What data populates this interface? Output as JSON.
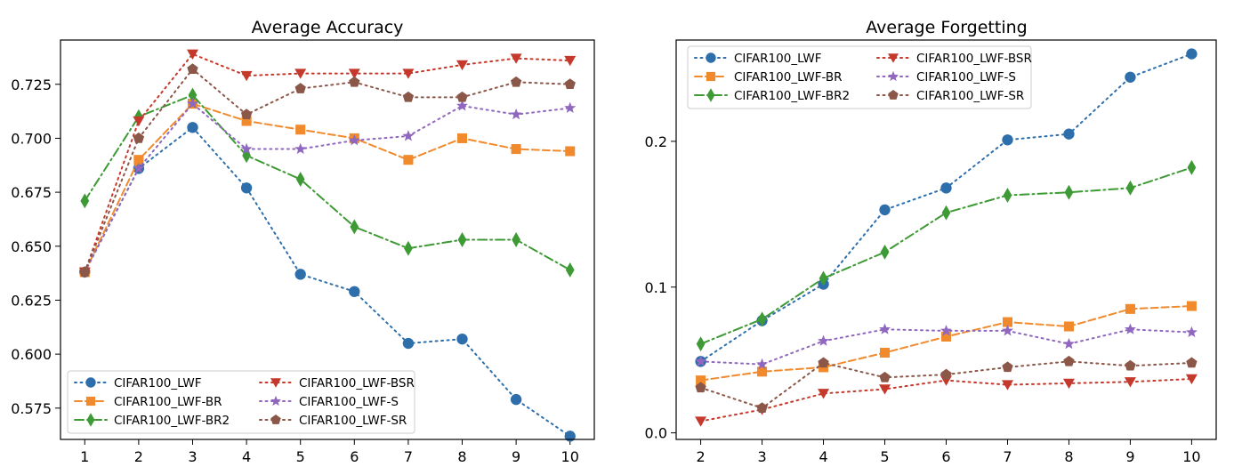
{
  "chart_data": [
    {
      "type": "line",
      "title": "Average Accuracy",
      "xlabel": "",
      "ylabel": "",
      "x": [
        1,
        2,
        3,
        4,
        5,
        6,
        7,
        8,
        9,
        10
      ],
      "xlim": [
        0.55,
        10.45
      ],
      "ylim": [
        0.5605,
        0.7455
      ],
      "yticks": [
        0.575,
        0.6,
        0.625,
        0.65,
        0.675,
        0.7,
        0.725
      ],
      "ytick_labels": [
        "0.575",
        "0.600",
        "0.625",
        "0.650",
        "0.675",
        "0.700",
        "0.725"
      ],
      "xtick_labels": [
        "1",
        "2",
        "3",
        "4",
        "5",
        "6",
        "7",
        "8",
        "9",
        "10"
      ],
      "grid": false,
      "legend_position": "lower-left",
      "legend_columns": 2,
      "series": [
        {
          "name": "CIFAR100_LWF",
          "color": "#2e6fab",
          "marker": "circle",
          "dash": "dotted",
          "x": [
            1,
            2,
            3,
            4,
            5,
            6,
            7,
            8,
            9,
            10
          ],
          "values": [
            0.638,
            0.686,
            0.705,
            0.677,
            0.637,
            0.629,
            0.605,
            0.607,
            0.579,
            0.562
          ]
        },
        {
          "name": "CIFAR100_LWF-BR",
          "color": "#f08a2c",
          "marker": "square",
          "dash": "dashed",
          "x": [
            1,
            2,
            3,
            4,
            5,
            6,
            7,
            8,
            9,
            10
          ],
          "values": [
            0.638,
            0.69,
            0.716,
            0.708,
            0.704,
            0.7,
            0.69,
            0.7,
            0.695,
            0.694
          ]
        },
        {
          "name": "CIFAR100_LWF-BR2",
          "color": "#3e9a35",
          "marker": "diamond",
          "dash": "dashdot",
          "x": [
            1,
            2,
            3,
            4,
            5,
            6,
            7,
            8,
            9,
            10
          ],
          "values": [
            0.671,
            0.71,
            0.72,
            0.692,
            0.681,
            0.659,
            0.649,
            0.653,
            0.653,
            0.639
          ]
        },
        {
          "name": "CIFAR100_LWF-BSR",
          "color": "#c5392c",
          "marker": "triangle-down",
          "dash": "dotted",
          "x": [
            1,
            2,
            3,
            4,
            5,
            6,
            7,
            8,
            9,
            10
          ],
          "values": [
            0.638,
            0.708,
            0.739,
            0.729,
            0.73,
            0.73,
            0.73,
            0.734,
            0.737,
            0.736
          ]
        },
        {
          "name": "CIFAR100_LWF-S",
          "color": "#9067bf",
          "marker": "star",
          "dash": "dotted",
          "x": [
            1,
            2,
            3,
            4,
            5,
            6,
            7,
            8,
            9,
            10
          ],
          "values": [
            0.638,
            0.686,
            0.716,
            0.695,
            0.695,
            0.699,
            0.701,
            0.715,
            0.711,
            0.714
          ]
        },
        {
          "name": "CIFAR100_LWF-SR",
          "color": "#8b5748",
          "marker": "pentagon",
          "dash": "dotted",
          "x": [
            1,
            2,
            3,
            4,
            5,
            6,
            7,
            8,
            9,
            10
          ],
          "values": [
            0.638,
            0.7,
            0.732,
            0.711,
            0.723,
            0.726,
            0.719,
            0.719,
            0.726,
            0.725
          ]
        }
      ]
    },
    {
      "type": "line",
      "title": "Average Forgetting",
      "xlabel": "",
      "ylabel": "",
      "x": [
        2,
        3,
        4,
        5,
        6,
        7,
        8,
        9,
        10
      ],
      "xlim": [
        1.6,
        10.4
      ],
      "ylim": [
        -0.0045,
        0.2695
      ],
      "yticks": [
        0.0,
        0.1,
        0.2
      ],
      "ytick_labels": [
        "0.0",
        "0.1",
        "0.2"
      ],
      "xtick_labels": [
        "2",
        "3",
        "4",
        "5",
        "6",
        "7",
        "8",
        "9",
        "10"
      ],
      "grid": false,
      "legend_position": "upper-left",
      "legend_columns": 2,
      "series": [
        {
          "name": "CIFAR100_LWF",
          "color": "#2e6fab",
          "marker": "circle",
          "dash": "dotted",
          "x": [
            2,
            3,
            4,
            5,
            6,
            7,
            8,
            9,
            10
          ],
          "values": [
            0.049,
            0.077,
            0.102,
            0.153,
            0.168,
            0.201,
            0.205,
            0.244,
            0.26
          ]
        },
        {
          "name": "CIFAR100_LWF-BR",
          "color": "#f08a2c",
          "marker": "square",
          "dash": "dashed",
          "x": [
            2,
            3,
            4,
            5,
            6,
            7,
            8,
            9,
            10
          ],
          "values": [
            0.036,
            0.042,
            0.045,
            0.055,
            0.066,
            0.076,
            0.073,
            0.085,
            0.087
          ]
        },
        {
          "name": "CIFAR100_LWF-BR2",
          "color": "#3e9a35",
          "marker": "diamond",
          "dash": "dashdot",
          "x": [
            2,
            3,
            4,
            5,
            6,
            7,
            8,
            9,
            10
          ],
          "values": [
            0.061,
            0.078,
            0.106,
            0.124,
            0.151,
            0.163,
            0.165,
            0.168,
            0.182
          ]
        },
        {
          "name": "CIFAR100_LWF-BSR",
          "color": "#c5392c",
          "marker": "triangle-down",
          "dash": "dotted",
          "x": [
            2,
            3,
            4,
            5,
            6,
            7,
            8,
            9,
            10
          ],
          "values": [
            0.008,
            0.016,
            0.027,
            0.03,
            0.036,
            0.033,
            0.034,
            0.035,
            0.037
          ]
        },
        {
          "name": "CIFAR100_LWF-S",
          "color": "#9067bf",
          "marker": "star",
          "dash": "dotted",
          "x": [
            2,
            3,
            4,
            5,
            6,
            7,
            8,
            9,
            10
          ],
          "values": [
            0.049,
            0.047,
            0.063,
            0.071,
            0.07,
            0.07,
            0.061,
            0.071,
            0.069
          ]
        },
        {
          "name": "CIFAR100_LWF-SR",
          "color": "#8b5748",
          "marker": "pentagon",
          "dash": "dotted",
          "x": [
            2,
            3,
            4,
            5,
            6,
            7,
            8,
            9,
            10
          ],
          "values": [
            0.031,
            0.017,
            0.048,
            0.038,
            0.04,
            0.045,
            0.049,
            0.046,
            0.048
          ]
        }
      ]
    }
  ]
}
